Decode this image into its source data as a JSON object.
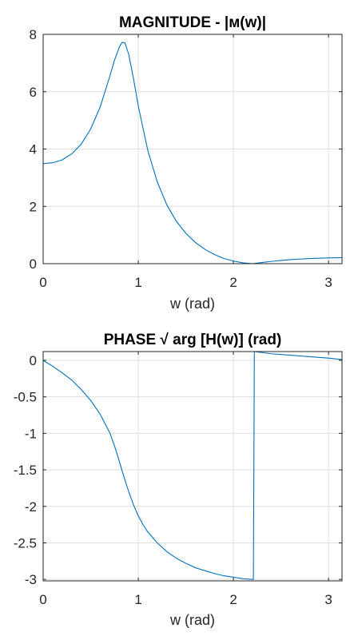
{
  "chart_data": [
    {
      "type": "line",
      "title": "MAGNITUDE - |м(w)|",
      "xlabel": "w (rad)",
      "ylabel": "",
      "xlim": [
        0,
        3.1416
      ],
      "ylim": [
        0,
        8
      ],
      "grid": true,
      "xticks": [
        0,
        1,
        2,
        3
      ],
      "xtick_labels": [
        "0",
        "1",
        "2",
        "3"
      ],
      "yticks": [
        0,
        2,
        4,
        6,
        8
      ],
      "ytick_labels": [
        "0",
        "2",
        "4",
        "6",
        "8"
      ],
      "line_color": "#0072bd",
      "series": [
        {
          "x": [
            0,
            0.1,
            0.2,
            0.3,
            0.4,
            0.5,
            0.6,
            0.7,
            0.75,
            0.8,
            0.83,
            0.86,
            0.9,
            0.95,
            1.0,
            1.1,
            1.2,
            1.3,
            1.4,
            1.5,
            1.6,
            1.7,
            1.8,
            1.9,
            2.0,
            2.1,
            2.2,
            2.3,
            2.4,
            2.5,
            2.6,
            2.7,
            2.8,
            2.9,
            3.0,
            3.1416
          ],
          "y": [
            3.49,
            3.52,
            3.62,
            3.83,
            4.17,
            4.7,
            5.47,
            6.53,
            7.1,
            7.55,
            7.72,
            7.7,
            7.3,
            6.45,
            5.5,
            3.95,
            2.85,
            2.05,
            1.48,
            1.06,
            0.74,
            0.5,
            0.32,
            0.18,
            0.09,
            0.03,
            0.0,
            0.04,
            0.08,
            0.11,
            0.14,
            0.16,
            0.18,
            0.19,
            0.2,
            0.21
          ]
        }
      ]
    },
    {
      "type": "line",
      "title": "PHASE √ arg [H(w)]  (rad)",
      "xlabel": "w (rad)",
      "ylabel": "",
      "xlim": [
        0,
        3.1416
      ],
      "ylim": [
        -3.02,
        0.12
      ],
      "grid": true,
      "xticks": [
        0,
        1,
        2,
        3
      ],
      "xtick_labels": [
        "0",
        "1",
        "2",
        "3"
      ],
      "yticks": [
        0,
        -0.5,
        -1,
        -1.5,
        -2,
        -2.5,
        -3
      ],
      "ytick_labels": [
        "0",
        "-0.5",
        "-1",
        "-1.5",
        "-2",
        "-2.5",
        "-3"
      ],
      "line_color": "#0072bd",
      "series": [
        {
          "x": [
            0,
            0.1,
            0.2,
            0.3,
            0.4,
            0.5,
            0.6,
            0.7,
            0.75,
            0.8,
            0.85,
            0.9,
            0.95,
            1.0,
            1.05,
            1.1,
            1.2,
            1.3,
            1.4,
            1.5,
            1.6,
            1.7,
            1.8,
            1.9,
            2.0,
            2.1,
            2.2,
            2.21,
            2.22,
            2.4,
            2.6,
            2.8,
            3.0,
            3.1416
          ],
          "y": [
            0,
            -0.08,
            -0.17,
            -0.27,
            -0.4,
            -0.55,
            -0.74,
            -0.99,
            -1.17,
            -1.38,
            -1.6,
            -1.8,
            -1.98,
            -2.13,
            -2.25,
            -2.35,
            -2.5,
            -2.62,
            -2.71,
            -2.78,
            -2.84,
            -2.88,
            -2.92,
            -2.95,
            -2.97,
            -2.99,
            -3.0,
            -3.0,
            0.12,
            0.09,
            0.07,
            0.05,
            0.03,
            0.01
          ]
        }
      ]
    }
  ]
}
